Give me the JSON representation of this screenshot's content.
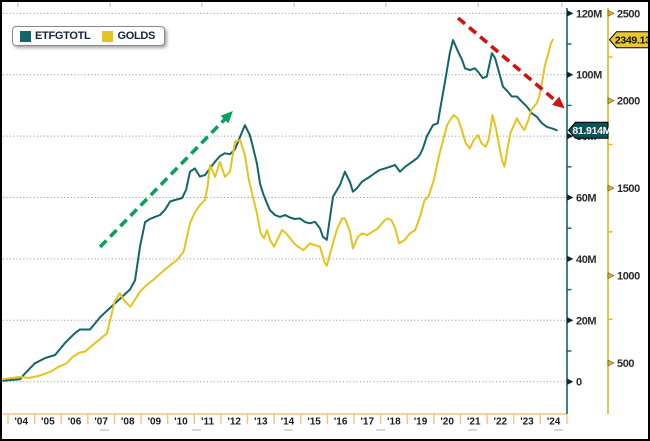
{
  "chart_data": {
    "type": "line",
    "title": "",
    "description": "Total gold ETF holdings (ETFGTOTL, million oz, inner right axis) vs gold spot price (GOLDS, USD/oz, outer right axis), 2004-2024",
    "x_unit": "years since 2004 (fraction of year)",
    "x_tick_labels": [
      "'04",
      "'05",
      "'06",
      "'07",
      "'08",
      "'09",
      "'10",
      "'11",
      "'12",
      "'13",
      "'14",
      "'15",
      "'16",
      "'17",
      "'18",
      "'19",
      "'20",
      "'21",
      "'22",
      "'23",
      "'24"
    ],
    "grid": "horizontal dotted, at million-oz axis majors",
    "legend_position": "top-left",
    "series": [
      {
        "name": "ETFGTOTL",
        "axis": "moz",
        "unit": "M oz",
        "color": "#116668",
        "last_value_label": "81.914M",
        "points": [
          [
            -0.18,
            0.3
          ],
          [
            0,
            0.5
          ],
          [
            0.45,
            0.8
          ],
          [
            0.64,
            2.7
          ],
          [
            1.01,
            6
          ],
          [
            1.39,
            7.7
          ],
          [
            1.77,
            8.7
          ],
          [
            2.14,
            12.6
          ],
          [
            2.52,
            15.9
          ],
          [
            2.7,
            17
          ],
          [
            3.08,
            17
          ],
          [
            3.46,
            21
          ],
          [
            3.83,
            24
          ],
          [
            4.21,
            27
          ],
          [
            4.58,
            30
          ],
          [
            4.77,
            33
          ],
          [
            4.96,
            44
          ],
          [
            5.15,
            52
          ],
          [
            5.33,
            53
          ],
          [
            5.52,
            53.7
          ],
          [
            5.71,
            54.3
          ],
          [
            5.9,
            56
          ],
          [
            6.09,
            58.7
          ],
          [
            6.27,
            59.2
          ],
          [
            6.54,
            59.8
          ],
          [
            6.69,
            62.5
          ],
          [
            6.84,
            68.4
          ],
          [
            7.02,
            69.5
          ],
          [
            7.21,
            66.8
          ],
          [
            7.4,
            67.3
          ],
          [
            7.59,
            69.5
          ],
          [
            7.78,
            71.7
          ],
          [
            7.96,
            73.5
          ],
          [
            8.15,
            74.4
          ],
          [
            8.34,
            74.1
          ],
          [
            8.53,
            75.7
          ],
          [
            8.72,
            79.8
          ],
          [
            8.9,
            83.6
          ],
          [
            9.09,
            80.3
          ],
          [
            9.2,
            76.5
          ],
          [
            9.35,
            71.1
          ],
          [
            9.47,
            64.6
          ],
          [
            9.58,
            61.4
          ],
          [
            9.73,
            58.1
          ],
          [
            9.84,
            55.9
          ],
          [
            10.03,
            54.3
          ],
          [
            10.22,
            53.7
          ],
          [
            10.41,
            54.3
          ],
          [
            10.59,
            53.5
          ],
          [
            10.78,
            53
          ],
          [
            10.97,
            53.2
          ],
          [
            11.16,
            52
          ],
          [
            11.35,
            51.6
          ],
          [
            11.53,
            52.1
          ],
          [
            11.72,
            50
          ],
          [
            11.83,
            47.2
          ],
          [
            11.98,
            46.2
          ],
          [
            12.21,
            60.3
          ],
          [
            12.47,
            64
          ],
          [
            12.66,
            68.4
          ],
          [
            12.85,
            65
          ],
          [
            12.96,
            61.9
          ],
          [
            13.11,
            63
          ],
          [
            13.3,
            65.2
          ],
          [
            13.45,
            66
          ],
          [
            13.6,
            66.8
          ],
          [
            13.79,
            68
          ],
          [
            13.97,
            69
          ],
          [
            14.16,
            69.5
          ],
          [
            14.35,
            70
          ],
          [
            14.54,
            70.6
          ],
          [
            14.73,
            68.4
          ],
          [
            14.92,
            70
          ],
          [
            15.18,
            71.6
          ],
          [
            15.37,
            72.8
          ],
          [
            15.48,
            74
          ],
          [
            15.59,
            76
          ],
          [
            15.74,
            80
          ],
          [
            15.97,
            83.6
          ],
          [
            16.15,
            84.2
          ],
          [
            16.23,
            88.5
          ],
          [
            16.42,
            97.7
          ],
          [
            16.6,
            107
          ],
          [
            16.72,
            111.3
          ],
          [
            16.91,
            107.5
          ],
          [
            17.06,
            104.8
          ],
          [
            17.17,
            102.1
          ],
          [
            17.36,
            101.5
          ],
          [
            17.54,
            102.1
          ],
          [
            17.66,
            101
          ],
          [
            17.84,
            98.9
          ],
          [
            17.99,
            99.4
          ],
          [
            18.18,
            107
          ],
          [
            18.3,
            105.4
          ],
          [
            18.48,
            99.9
          ],
          [
            18.6,
            96.1
          ],
          [
            18.78,
            94.5
          ],
          [
            18.93,
            92.9
          ],
          [
            19.12,
            92.9
          ],
          [
            19.31,
            91.2
          ],
          [
            19.5,
            89.6
          ],
          [
            19.69,
            87.4
          ],
          [
            19.87,
            86.3
          ],
          [
            20.06,
            84.2
          ],
          [
            20.25,
            83
          ],
          [
            20.44,
            82.5
          ],
          [
            20.62,
            81.914
          ]
        ]
      },
      {
        "name": "GOLDS",
        "axis": "usd",
        "unit": "USD/oz",
        "color": "#e4c41f",
        "last_value_label": "2349.13",
        "points": [
          [
            -0.18,
            408
          ],
          [
            0,
            412
          ],
          [
            0.45,
            420
          ],
          [
            0.8,
            415
          ],
          [
            1.2,
            428
          ],
          [
            1.6,
            450
          ],
          [
            1.9,
            478
          ],
          [
            2.22,
            500
          ],
          [
            2.44,
            536
          ],
          [
            2.7,
            560
          ],
          [
            2.89,
            565
          ],
          [
            3.08,
            590
          ],
          [
            3.34,
            622
          ],
          [
            3.72,
            670
          ],
          [
            4.0,
            850
          ],
          [
            4.2,
            899
          ],
          [
            4.4,
            851
          ],
          [
            4.6,
            822
          ],
          [
            4.8,
            870
          ],
          [
            4.96,
            908
          ],
          [
            5.2,
            945
          ],
          [
            5.45,
            975
          ],
          [
            5.8,
            1022
          ],
          [
            6.1,
            1060
          ],
          [
            6.35,
            1089
          ],
          [
            6.6,
            1137
          ],
          [
            6.84,
            1300
          ],
          [
            7.02,
            1360
          ],
          [
            7.2,
            1400
          ],
          [
            7.4,
            1432
          ],
          [
            7.5,
            1510
          ],
          [
            7.59,
            1632
          ],
          [
            7.78,
            1565
          ],
          [
            7.96,
            1651
          ],
          [
            8.15,
            1565
          ],
          [
            8.34,
            1594
          ],
          [
            8.53,
            1766
          ],
          [
            8.72,
            1775
          ],
          [
            8.9,
            1689
          ],
          [
            9.05,
            1546
          ],
          [
            9.2,
            1451
          ],
          [
            9.35,
            1356
          ],
          [
            9.5,
            1241
          ],
          [
            9.62,
            1213
          ],
          [
            9.73,
            1260
          ],
          [
            9.85,
            1203
          ],
          [
            10,
            1165
          ],
          [
            10.15,
            1213
          ],
          [
            10.3,
            1260
          ],
          [
            10.45,
            1241
          ],
          [
            10.6,
            1213
          ],
          [
            10.75,
            1184
          ],
          [
            10.9,
            1165
          ],
          [
            11.1,
            1146
          ],
          [
            11.35,
            1184
          ],
          [
            11.53,
            1174
          ],
          [
            11.72,
            1165
          ],
          [
            11.91,
            1070
          ],
          [
            11.98,
            1056
          ],
          [
            12.16,
            1156
          ],
          [
            12.35,
            1260
          ],
          [
            12.55,
            1327
          ],
          [
            12.66,
            1327
          ],
          [
            12.85,
            1251
          ],
          [
            12.96,
            1156
          ],
          [
            13.15,
            1222
          ],
          [
            13.3,
            1241
          ],
          [
            13.5,
            1232
          ],
          [
            13.7,
            1251
          ],
          [
            13.9,
            1270
          ],
          [
            14.1,
            1308
          ],
          [
            14.25,
            1327
          ],
          [
            14.4,
            1318
          ],
          [
            14.55,
            1270
          ],
          [
            14.7,
            1184
          ],
          [
            14.9,
            1203
          ],
          [
            15.1,
            1241
          ],
          [
            15.3,
            1260
          ],
          [
            15.5,
            1346
          ],
          [
            15.65,
            1432
          ],
          [
            15.8,
            1451
          ],
          [
            16,
            1546
          ],
          [
            16.2,
            1690
          ],
          [
            16.35,
            1775
          ],
          [
            16.5,
            1861
          ],
          [
            16.65,
            1899
          ],
          [
            16.75,
            1918
          ],
          [
            16.9,
            1899
          ],
          [
            17.05,
            1832
          ],
          [
            17.2,
            1756
          ],
          [
            17.35,
            1727
          ],
          [
            17.5,
            1775
          ],
          [
            17.65,
            1804
          ],
          [
            17.8,
            1756
          ],
          [
            17.95,
            1737
          ],
          [
            18.05,
            1775
          ],
          [
            18.12,
            1832
          ],
          [
            18.2,
            1918
          ],
          [
            18.32,
            1851
          ],
          [
            18.44,
            1756
          ],
          [
            18.56,
            1661
          ],
          [
            18.65,
            1623
          ],
          [
            18.76,
            1718
          ],
          [
            18.87,
            1813
          ],
          [
            18.98,
            1851
          ],
          [
            19.12,
            1899
          ],
          [
            19.26,
            1861
          ],
          [
            19.4,
            1832
          ],
          [
            19.55,
            1889
          ],
          [
            19.66,
            1947
          ],
          [
            19.76,
            1966
          ],
          [
            19.86,
            1985
          ],
          [
            19.96,
            2023
          ],
          [
            20.06,
            2099
          ],
          [
            20.16,
            2194
          ],
          [
            20.3,
            2271
          ],
          [
            20.4,
            2328
          ],
          [
            20.47,
            2349.13
          ]
        ]
      }
    ],
    "axes": {
      "moz": {
        "side": "right-inner",
        "color": "#116668",
        "label_color": "#2b2b2b",
        "majors": [
          120,
          100,
          80,
          60,
          40,
          20,
          0
        ],
        "major_labels": [
          "120M",
          "100M",
          "80M",
          "60M",
          "40M",
          "20M",
          "0"
        ],
        "minors": [
          110,
          90,
          70,
          50,
          30,
          10
        ],
        "range": [
          0,
          120
        ]
      },
      "usd": {
        "side": "right-outer",
        "color": "#e4b31f",
        "label_color": "#2b2b2b",
        "majors": [
          2500,
          2000,
          1500,
          1000,
          500
        ],
        "major_labels": [
          "2500",
          "2000",
          "1500",
          "1000",
          "500"
        ],
        "minors": [
          2250,
          1750,
          1250,
          750
        ],
        "range": [
          500,
          2500
        ]
      },
      "x": {
        "color": "#f2c389",
        "label_color": "#1c1c1c"
      }
    },
    "annotations": [
      {
        "type": "trend-arrow",
        "direction": "up",
        "color": "#07a15c",
        "from": [
          3.46,
          43.9
        ],
        "to": [
          8.45,
          88.2
        ],
        "value_axis": "moz",
        "style": "dashed"
      },
      {
        "type": "trend-arrow",
        "direction": "down",
        "color": "#cf1310",
        "from": [
          16.91,
          118.5
        ],
        "to": [
          20.92,
          89.0
        ],
        "value_axis": "moz",
        "style": "dashed"
      }
    ],
    "badges": [
      {
        "text": "81.914M",
        "bg": "#0b5356",
        "fg": "#ffffff",
        "axis": "moz",
        "value": 81.914
      },
      {
        "text": "2349.13",
        "bg": "#eac82d",
        "fg": "#111111",
        "axis": "usd",
        "value": 2349.13
      }
    ],
    "gridline_color": "#8f8f8f"
  },
  "legend": {
    "items": [
      {
        "label": "ETFGTOTL"
      },
      {
        "label": "GOLDS"
      }
    ]
  }
}
